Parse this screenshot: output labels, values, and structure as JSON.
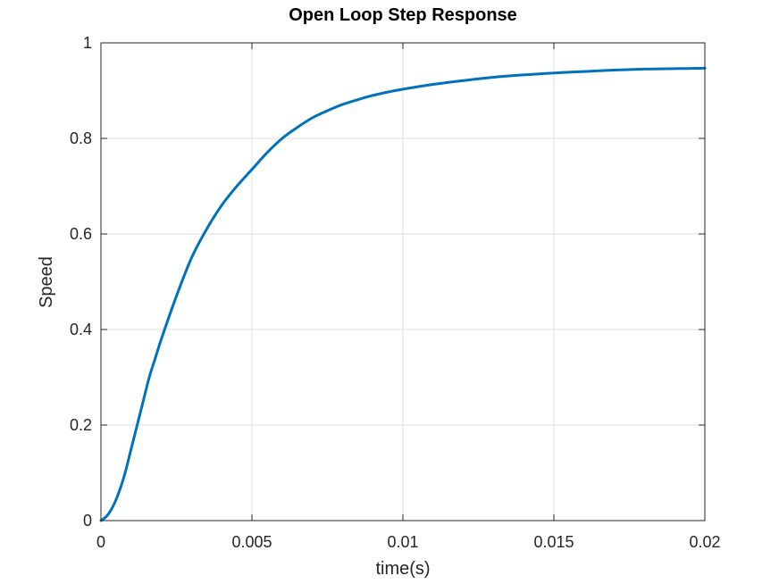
{
  "chart_data": {
    "type": "line",
    "title": "Open Loop Step Response",
    "xlabel": "time(s)",
    "ylabel": "Speed",
    "xlim": [
      0,
      0.02
    ],
    "ylim": [
      0,
      1
    ],
    "xticks": [
      0,
      0.005,
      0.01,
      0.015,
      0.02
    ],
    "xtick_labels": [
      "0",
      "0.005",
      "0.01",
      "0.015",
      "0.02"
    ],
    "yticks": [
      0,
      0.2,
      0.4,
      0.6,
      0.8,
      1
    ],
    "ytick_labels": [
      "0",
      "0.2",
      "0.4",
      "0.6",
      "0.8",
      "1"
    ],
    "grid": true,
    "series": [
      {
        "color": "#0072BD",
        "x": [
          0,
          0.0002,
          0.0004,
          0.0006,
          0.0008,
          0.001,
          0.0012,
          0.0014,
          0.0016,
          0.0018,
          0.002,
          0.0025,
          0.003,
          0.0035,
          0.004,
          0.0045,
          0.005,
          0.0055,
          0.006,
          0.0065,
          0.007,
          0.0075,
          0.008,
          0.0085,
          0.009,
          0.0095,
          0.01,
          0.011,
          0.012,
          0.013,
          0.014,
          0.015,
          0.016,
          0.017,
          0.018,
          0.019,
          0.02
        ],
        "y": [
          0,
          0.01,
          0.03,
          0.06,
          0.1,
          0.15,
          0.2,
          0.25,
          0.3,
          0.34,
          0.38,
          0.47,
          0.55,
          0.61,
          0.66,
          0.7,
          0.735,
          0.77,
          0.8,
          0.823,
          0.843,
          0.858,
          0.871,
          0.881,
          0.89,
          0.897,
          0.903,
          0.913,
          0.921,
          0.928,
          0.933,
          0.937,
          0.94,
          0.943,
          0.945,
          0.946,
          0.947
        ]
      }
    ]
  }
}
